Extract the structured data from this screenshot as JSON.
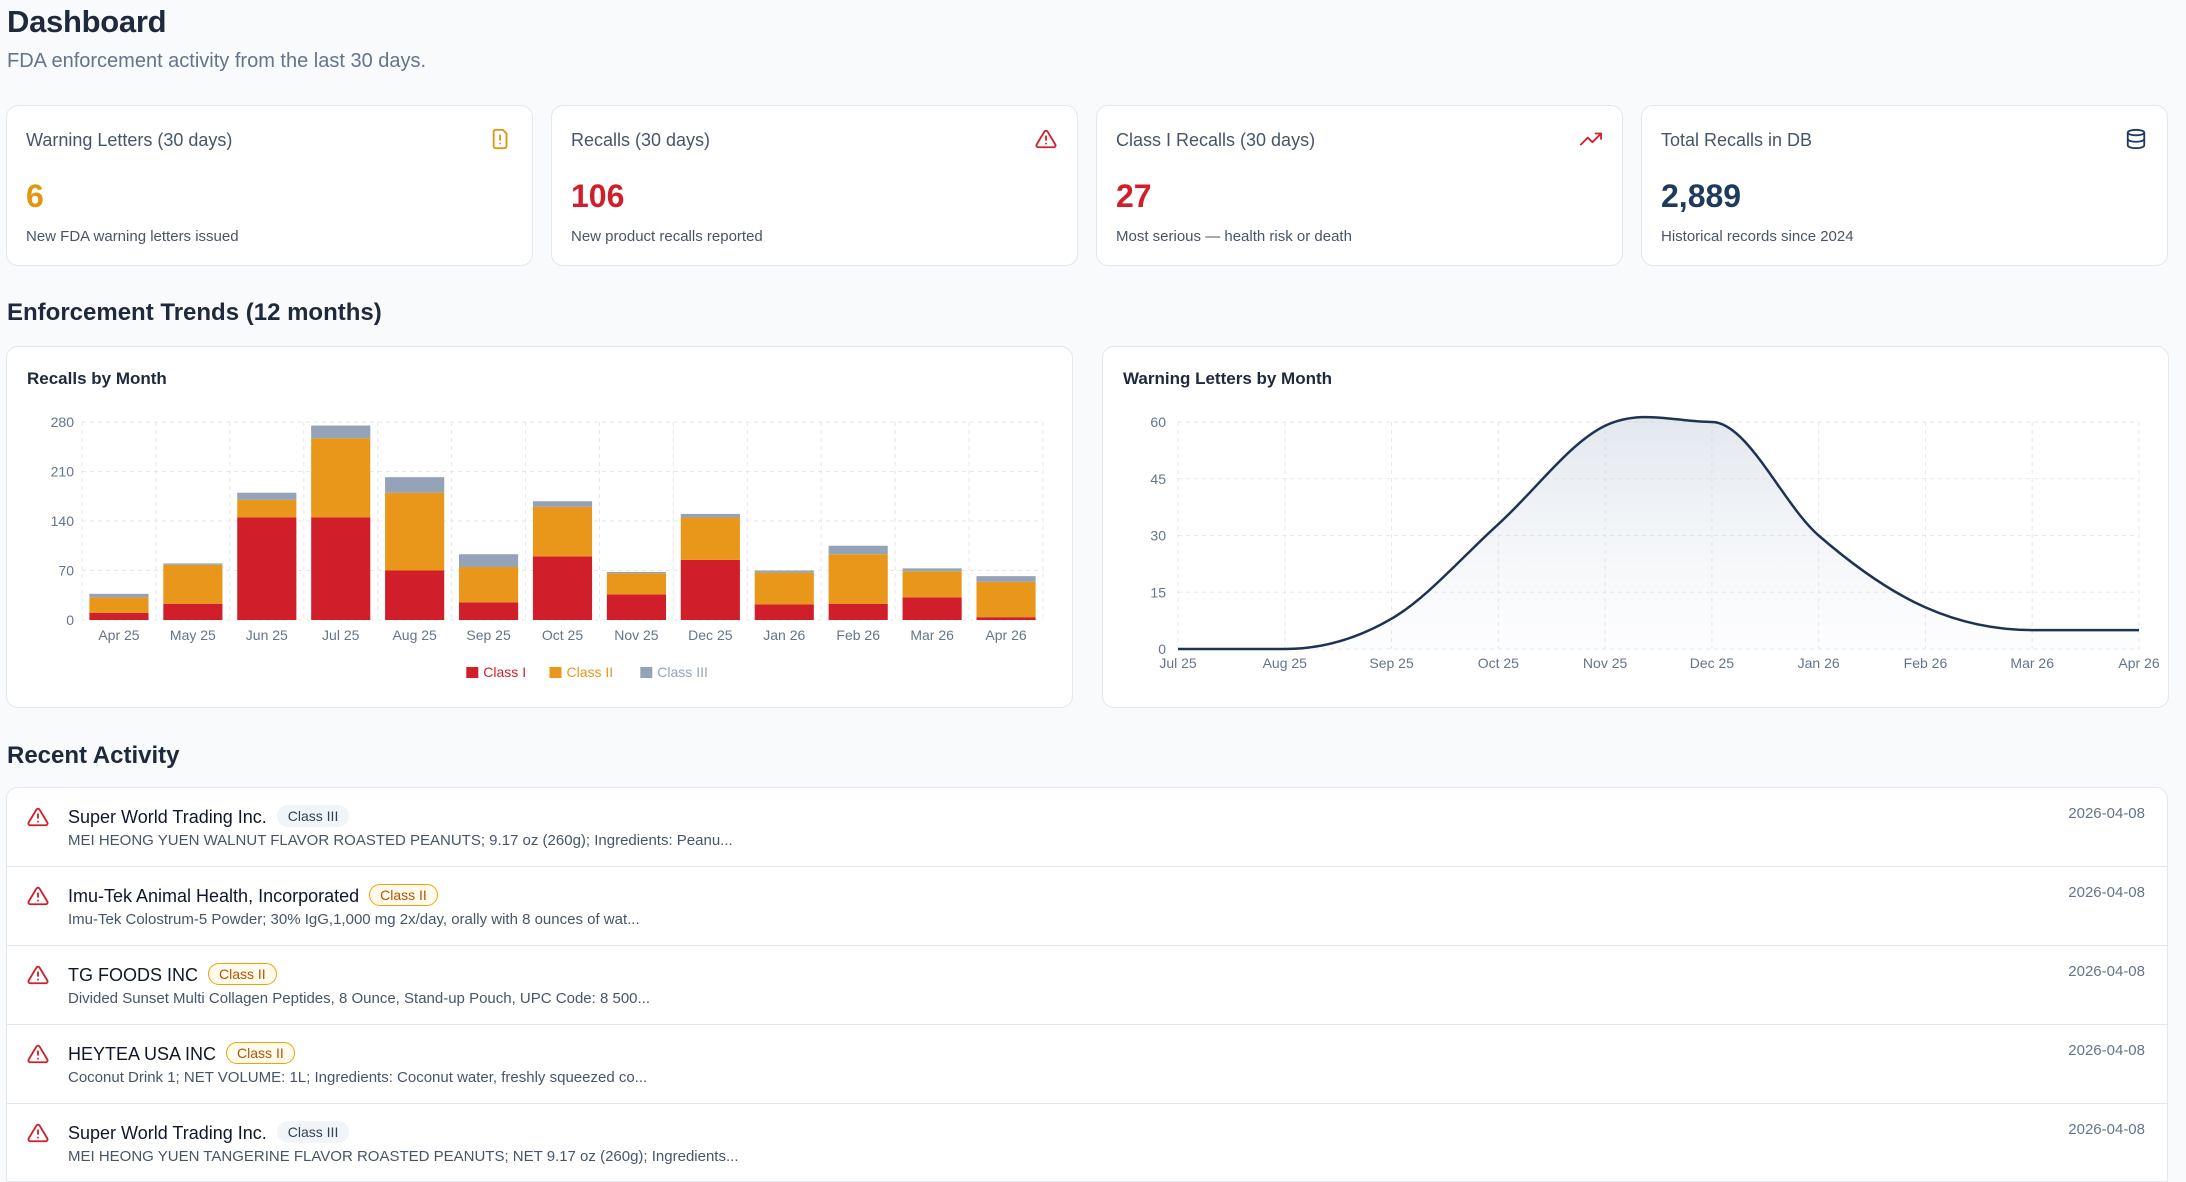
{
  "header": {
    "title": "Dashboard",
    "subtitle": "FDA enforcement activity from the last 30 days."
  },
  "stats": [
    {
      "label": "Warning Letters (30 days)",
      "value": "6",
      "desc": "New FDA warning letters issued",
      "icon": "file-warning-icon",
      "color": "#e0960f"
    },
    {
      "label": "Recalls (30 days)",
      "value": "106",
      "desc": "New product recalls reported",
      "icon": "alert-triangle-icon",
      "color": "#d01f2a"
    },
    {
      "label": "Class I Recalls (30 days)",
      "value": "27",
      "desc": "Most serious — health risk or death",
      "icon": "trending-up-icon",
      "color": "#d01f2a"
    },
    {
      "label": "Total Recalls in DB",
      "value": "2,889",
      "desc": "Historical records since 2024",
      "icon": "database-icon",
      "color": "#1e3a5f"
    }
  ],
  "trends": {
    "section_title": "Enforcement Trends (12 months)",
    "recalls_title": "Recalls by Month",
    "letters_title": "Warning Letters by Month"
  },
  "chart_data": [
    {
      "type": "bar",
      "stacked": true,
      "title": "Recalls by Month",
      "categories": [
        "Apr 25",
        "May 25",
        "Jun 25",
        "Jul 25",
        "Aug 25",
        "Sep 25",
        "Oct 25",
        "Nov 25",
        "Dec 25",
        "Jan 26",
        "Feb 26",
        "Mar 26",
        "Apr 26"
      ],
      "series": [
        {
          "name": "Class I",
          "color": "#d01f2a",
          "values": [
            10,
            23,
            145,
            145,
            70,
            25,
            90,
            36,
            85,
            22,
            23,
            32,
            4
          ]
        },
        {
          "name": "Class II",
          "color": "#e9971a",
          "values": [
            22,
            55,
            25,
            112,
            110,
            50,
            70,
            30,
            60,
            45,
            70,
            37,
            50
          ]
        },
        {
          "name": "Class III",
          "color": "#94a3b8",
          "values": [
            5,
            2,
            10,
            18,
            22,
            18,
            8,
            2,
            5,
            3,
            12,
            4,
            8
          ]
        }
      ],
      "yticks": [
        0,
        70,
        140,
        210,
        280
      ],
      "ylim": [
        0,
        280
      ],
      "grid": true,
      "legend": "bottom"
    },
    {
      "type": "area",
      "title": "Warning Letters by Month",
      "x": [
        "Jul 25",
        "Aug 25",
        "Sep 25",
        "Oct 25",
        "Nov 25",
        "Dec 25",
        "Jan 26",
        "Feb 26",
        "Mar 26",
        "Apr 26"
      ],
      "values": [
        0,
        0,
        8,
        33,
        59,
        60,
        30,
        11,
        5,
        5
      ],
      "color": "#1e3354",
      "yticks": [
        0,
        15,
        30,
        45,
        60
      ],
      "ylim": [
        0,
        60
      ],
      "grid": true
    }
  ],
  "activity": {
    "section_title": "Recent Activity",
    "items": [
      {
        "firm": "Super World Trading Inc.",
        "badge": "Class III",
        "desc": "MEI HEONG YUEN WALNUT FLAVOR ROASTED PEANUTS; 9.17 oz (260g); Ingredients: Peanu...",
        "date": "2026-04-08"
      },
      {
        "firm": "Imu-Tek Animal Health, Incorporated",
        "badge": "Class II",
        "desc": "Imu-Tek Colostrum-5 Powder; 30% IgG,1,000 mg 2x/day, orally with 8 ounces of wat...",
        "date": "2026-04-08"
      },
      {
        "firm": "TG FOODS INC",
        "badge": "Class II",
        "desc": "Divided Sunset Multi Collagen Peptides, 8 Ounce, Stand-up Pouch, UPC Code: 8 500...",
        "date": "2026-04-08"
      },
      {
        "firm": "HEYTEA USA INC",
        "badge": "Class II",
        "desc": "Coconut Drink 1; NET VOLUME: 1L; Ingredients: Coconut water, freshly squeezed co...",
        "date": "2026-04-08"
      },
      {
        "firm": "Super World Trading Inc.",
        "badge": "Class III",
        "desc": "MEI HEONG YUEN TANGERINE FLAVOR ROASTED PEANUTS; NET 9.17 oz (260g); Ingredients...",
        "date": "2026-04-08"
      }
    ]
  }
}
